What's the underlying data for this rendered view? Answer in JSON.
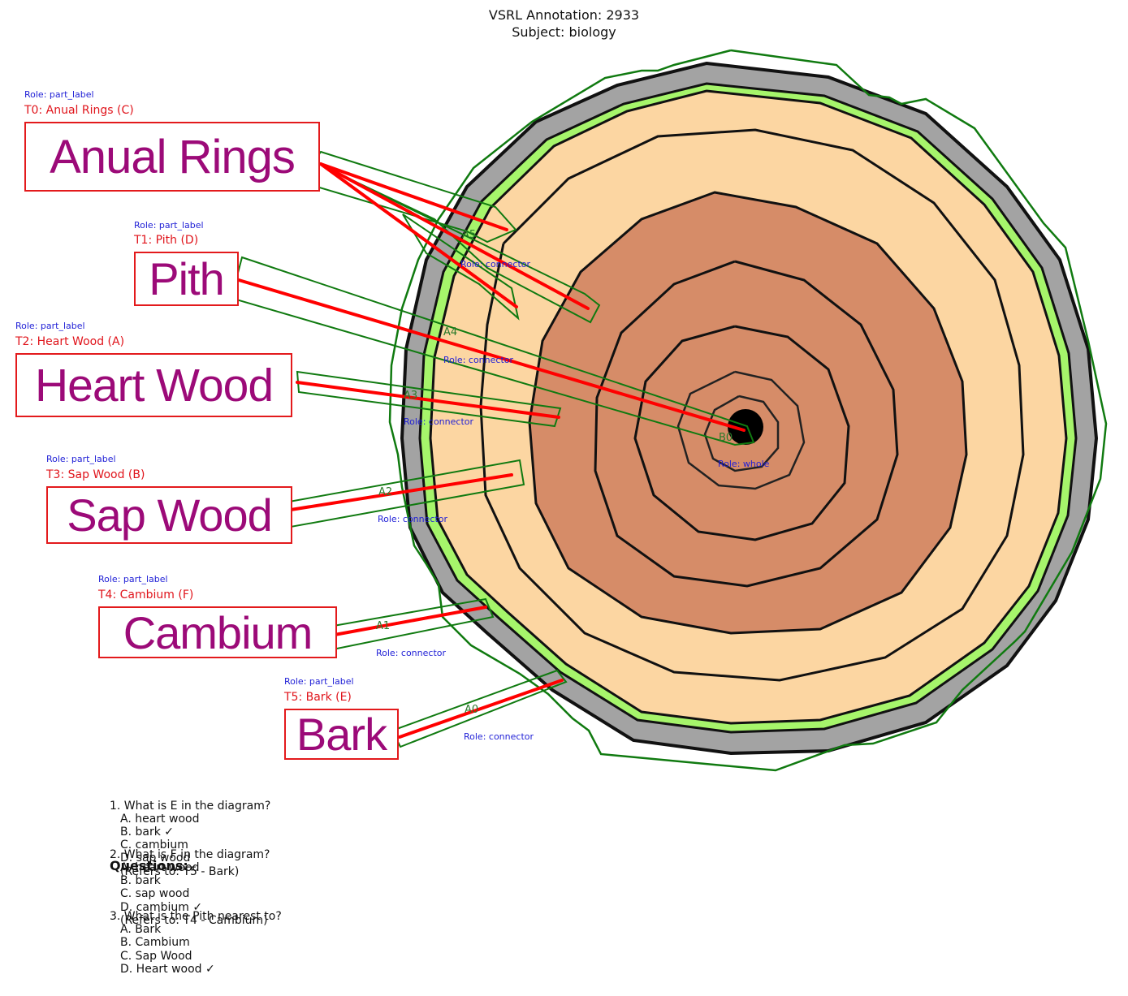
{
  "header": {
    "title": "VSRL Annotation: 2933",
    "subtitle": "Subject: biology"
  },
  "colors": {
    "bark": "#a3a3a3",
    "cambium": "#a6f56b",
    "sapwood": "#fcd6a2",
    "heartwood": "#d68c68",
    "pith": "#000000",
    "annotation_box": "#e31a1c",
    "polygon": "#107a10",
    "connector": "#ff0000",
    "label_text": "#9c0a78",
    "role_text": "#1f1fd6"
  },
  "text_boxes": [
    {
      "id": "T0",
      "role": "Role: part_label",
      "tag": "T0: Anual Rings (C)",
      "text": "Anual Rings"
    },
    {
      "id": "T1",
      "role": "Role: part_label",
      "tag": "T1: Pith (D)",
      "text": "Pith"
    },
    {
      "id": "T2",
      "role": "Role: part_label",
      "tag": "T2: Heart Wood (A)",
      "text": "Heart Wood"
    },
    {
      "id": "T3",
      "role": "Role: part_label",
      "tag": "T3: Sap Wood (B)",
      "text": "Sap Wood"
    },
    {
      "id": "T4",
      "role": "Role: part_label",
      "tag": "T4: Cambium (F)",
      "text": "Cambium"
    },
    {
      "id": "T5",
      "role": "Role: part_label",
      "tag": "T5: Bark (E)",
      "text": "Bark"
    }
  ],
  "arrows": [
    {
      "id": "A0",
      "role": "Role: connector"
    },
    {
      "id": "A1",
      "role": "Role: connector"
    },
    {
      "id": "A2",
      "role": "Role: connector"
    },
    {
      "id": "A3",
      "role": "Role: connector"
    },
    {
      "id": "A4",
      "role": "Role: connector"
    },
    {
      "id": "A5",
      "role": "Role: connector"
    }
  ],
  "blob": {
    "id": "B0",
    "role": "Role: whole"
  },
  "questions": {
    "heading": "Questions:",
    "items": [
      {
        "q": "1. What is E in the diagram?",
        "options": [
          "A. heart wood",
          "B. bark ✓",
          "C. cambium",
          "D. sap wood"
        ],
        "ref": "(Refers to: T5 - Bark)"
      },
      {
        "q": "2. What is F in the diagram?",
        "options": [
          "A. heart wood",
          "B. bark",
          "C. sap wood",
          "D. cambium ✓"
        ],
        "ref": "(Refers to: T4 - Cambium)"
      },
      {
        "q": "3. What is the Pith nearest to?",
        "options": [
          "A. Bark",
          "B. Cambium",
          "C. Sap Wood",
          "D. Heart wood ✓"
        ]
      }
    ]
  }
}
